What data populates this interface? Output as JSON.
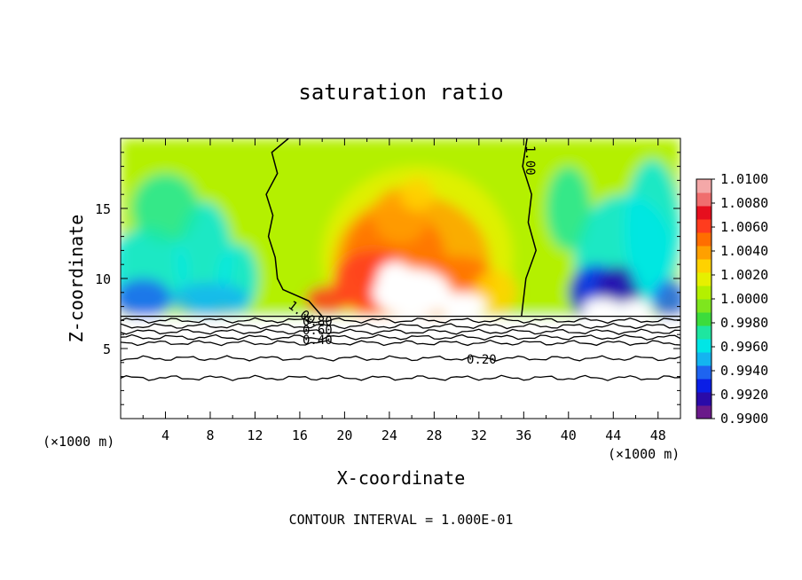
{
  "chart_data": {
    "type": "heatmap",
    "title": "saturation ratio",
    "xlabel": "X-coordinate",
    "ylabel": "Z-coordinate",
    "x_unit": "(×1000 m)",
    "xlim": [
      0,
      50
    ],
    "ylim": [
      0,
      20
    ],
    "x_ticks": [
      "4",
      "8",
      "12",
      "16",
      "20",
      "24",
      "28",
      "32",
      "36",
      "40",
      "44",
      "48"
    ],
    "y_ticks": [
      "5",
      "10",
      "15"
    ],
    "footer": "CONTOUR INTERVAL = 1.000E-01",
    "colorbar": {
      "labels": [
        "1.0100",
        "1.0080",
        "1.0060",
        "1.0040",
        "1.0020",
        "1.0000",
        "0.9980",
        "0.9960",
        "0.9940",
        "0.9920",
        "0.9900"
      ],
      "min": 0.99,
      "max": 1.01,
      "colors": [
        "#6a1a8a",
        "#2a0aa8",
        "#0a1ee6",
        "#1e64f0",
        "#14b4f0",
        "#00e6e6",
        "#1ee6a0",
        "#3cdc3c",
        "#7ee61e",
        "#b4f000",
        "#e6f000",
        "#ffd200",
        "#ffa000",
        "#ff6e00",
        "#ff3c1e",
        "#e60f1e",
        "#f06e6e",
        "#f4a8a8"
      ]
    },
    "contours": [
      {
        "label": "1.00",
        "level": 1.0
      },
      {
        "label": "0.80",
        "level": 0.8
      },
      {
        "label": "0.60",
        "level": 0.6
      },
      {
        "label": "0.40",
        "level": 0.4
      },
      {
        "label": "0.20",
        "level": 0.2
      }
    ],
    "cloud_top_z": 7.3,
    "dry_contours_z": [
      7.0,
      6.6,
      6.2,
      5.8,
      5.4,
      4.3,
      2.9
    ],
    "left_boundary_x": [
      15.0,
      13.5,
      14.0,
      13.0,
      13.6,
      13.2,
      13.8,
      14.0,
      14.5,
      16.8,
      18.0
    ],
    "left_boundary_z": [
      20.0,
      19.0,
      17.5,
      16.0,
      14.5,
      13.0,
      11.5,
      10.0,
      9.2,
      8.4,
      7.3
    ],
    "right_boundary_x": [
      36.3,
      35.9,
      36.7,
      36.4,
      37.1,
      36.2,
      35.8
    ],
    "right_boundary_z": [
      20.0,
      18.0,
      16.0,
      14.0,
      12.0,
      10.0,
      7.3
    ]
  }
}
